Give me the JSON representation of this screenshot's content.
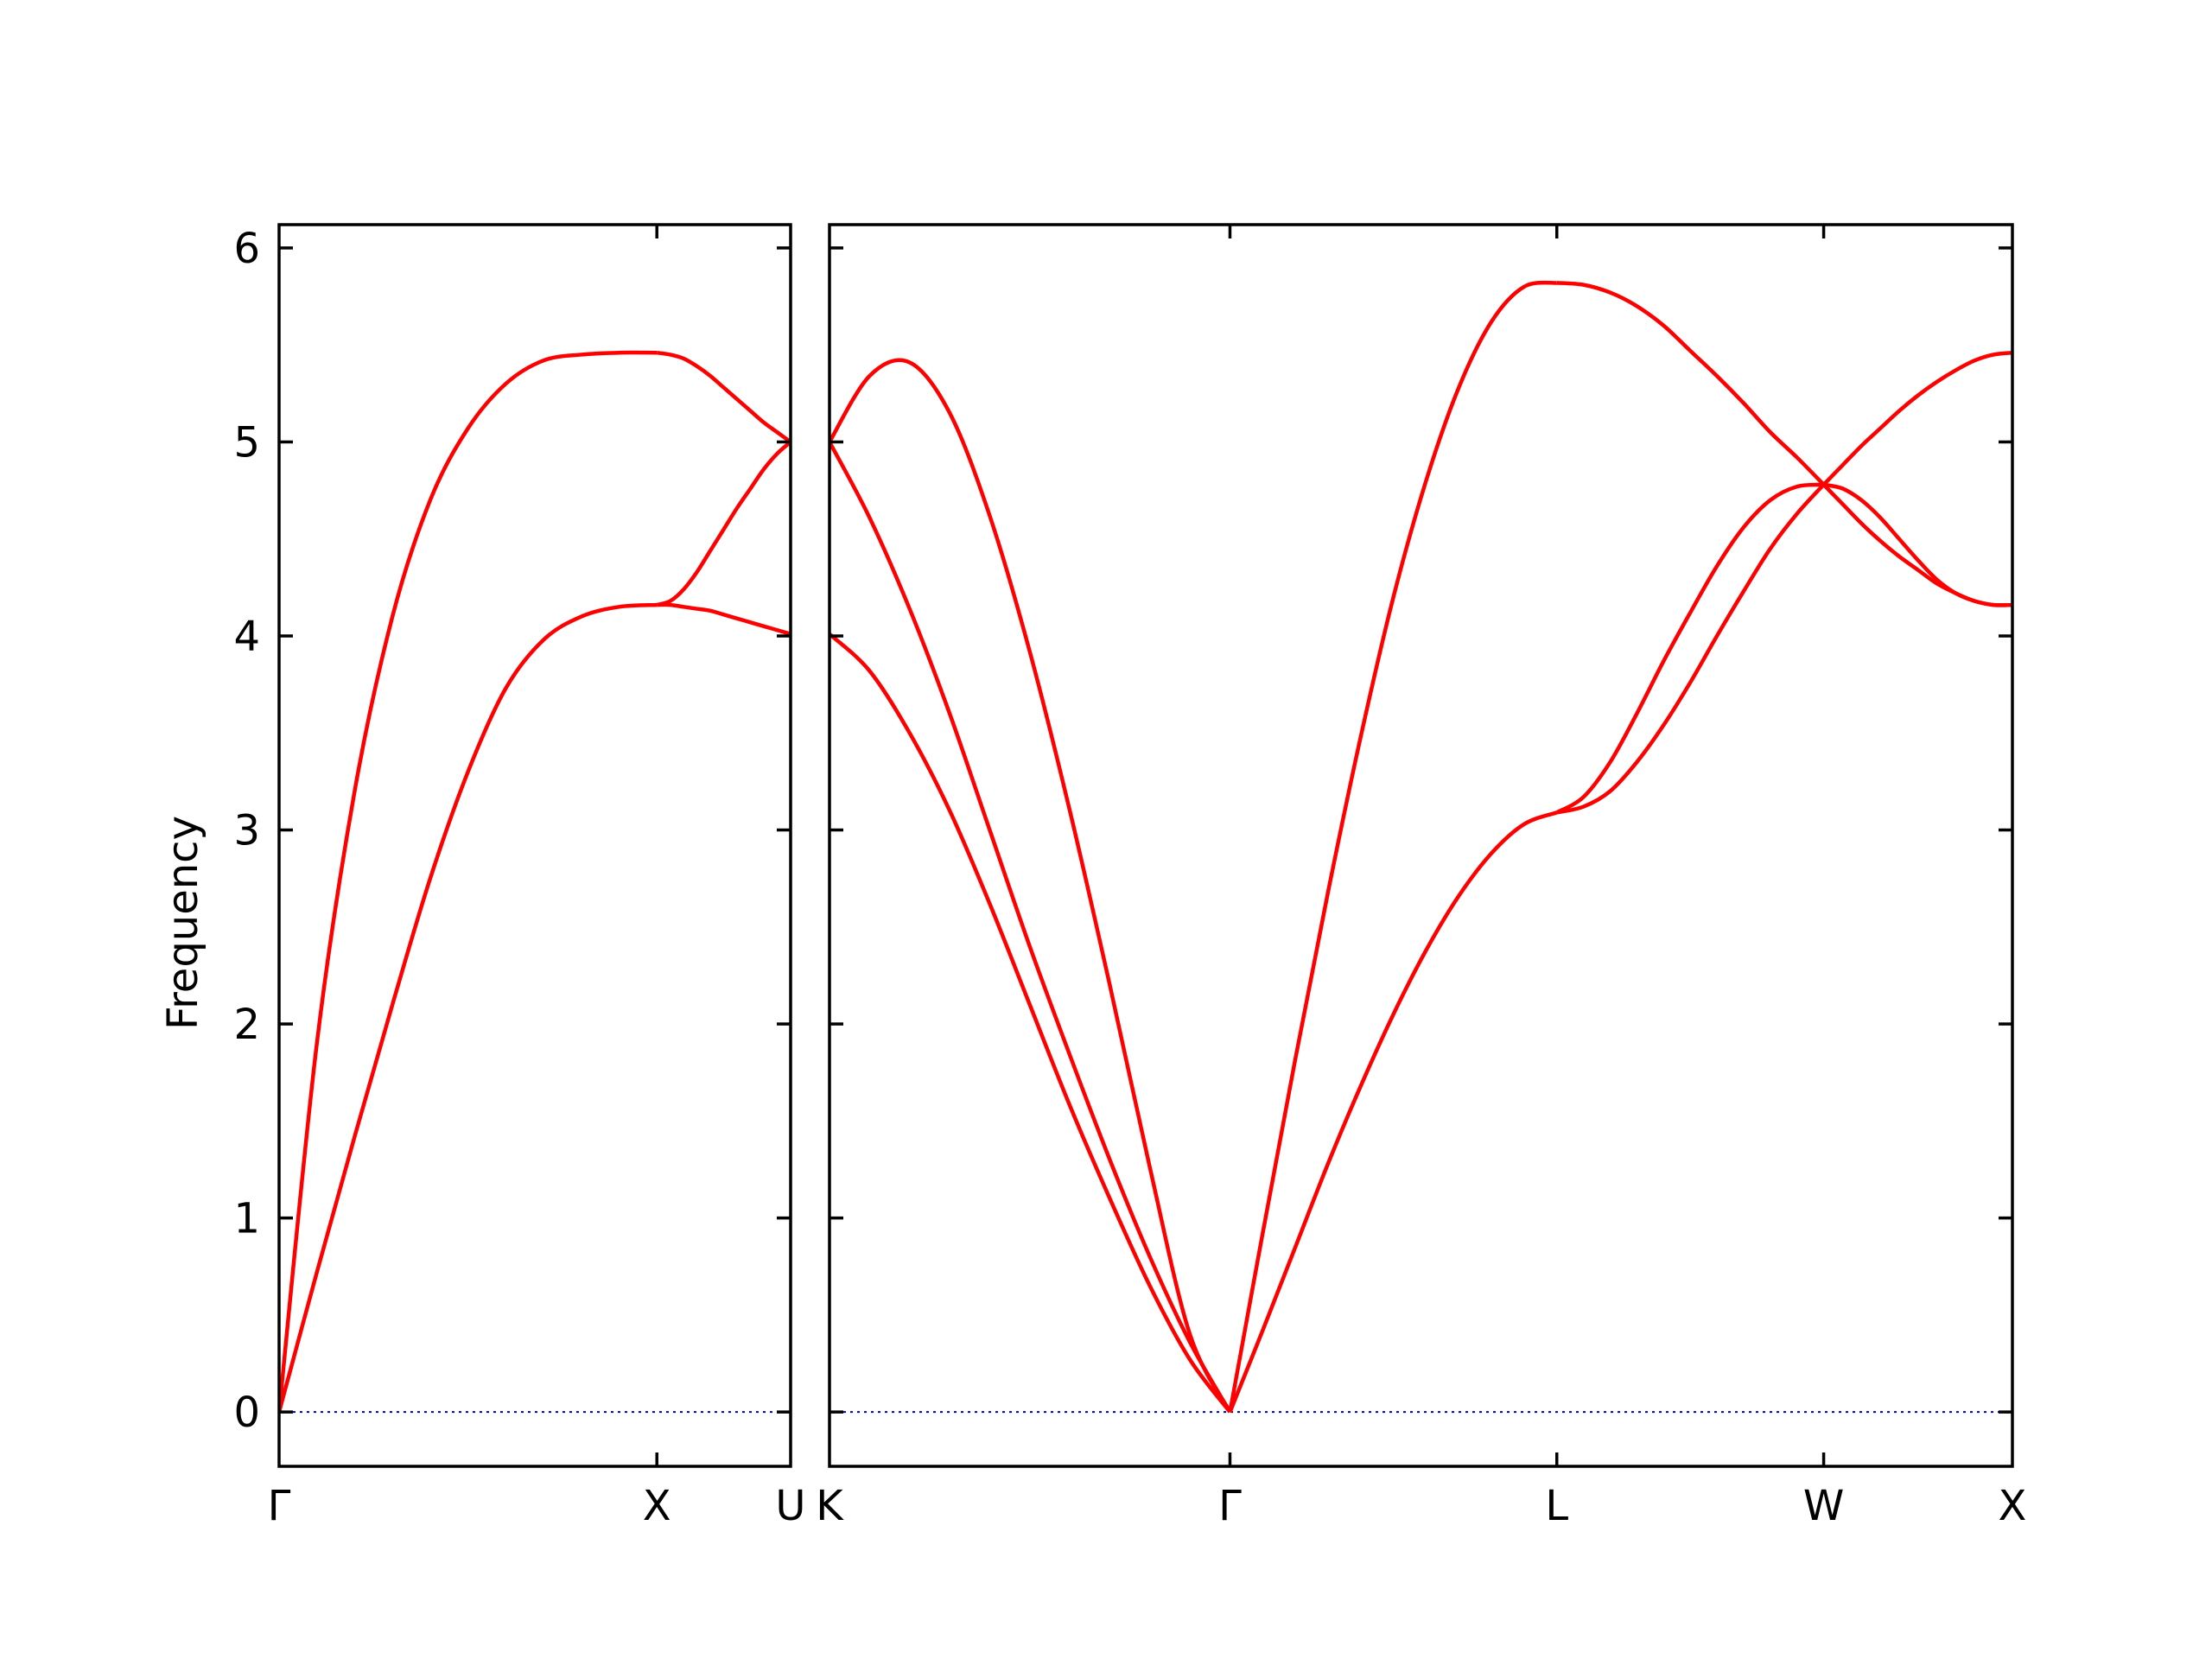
{
  "chart_data": {
    "type": "line",
    "title": "",
    "ylabel": "Frequency",
    "ylim": [
      -0.28,
      6.12
    ],
    "yticks": [
      0,
      1,
      2,
      3,
      4,
      5,
      6
    ],
    "ytick_labels": [
      "0",
      "1",
      "2",
      "3",
      "4",
      "5",
      "6"
    ],
    "grid": false,
    "legend": "none",
    "line_color": "#ff0000",
    "zero_line_color": "#0000aa",
    "panels": [
      {
        "id": "left",
        "path_labels": [
          "Γ",
          "X",
          "U"
        ],
        "segments": [
          {
            "from": "Γ",
            "to": "X",
            "length": 1.0,
            "branches": [
              {
                "name": "upper",
                "x": [
                  0,
                  0.1,
                  0.2,
                  0.3,
                  0.4,
                  0.5,
                  0.6,
                  0.7,
                  0.8,
                  0.9,
                  1.0
                ],
                "y": [
                  0,
                  1.9,
                  3.2,
                  4.1,
                  4.7,
                  5.07,
                  5.3,
                  5.42,
                  5.45,
                  5.46,
                  5.46
                ]
              },
              {
                "name": "lower",
                "x": [
                  0,
                  0.1,
                  0.2,
                  0.3,
                  0.4,
                  0.5,
                  0.6,
                  0.7,
                  0.8,
                  0.9,
                  1.0
                ],
                "y": [
                  0,
                  0.72,
                  1.42,
                  2.1,
                  2.75,
                  3.3,
                  3.73,
                  3.98,
                  4.1,
                  4.15,
                  4.16
                ]
              }
            ]
          },
          {
            "from": "X",
            "to": "U",
            "length": 0.354,
            "branches": [
              {
                "name": "upper",
                "x": [
                  0,
                  0.1,
                  0.2,
                  0.3,
                  0.4,
                  0.5,
                  0.6,
                  0.7,
                  0.8,
                  0.9,
                  1.0
                ],
                "y": [
                  5.46,
                  5.45,
                  5.43,
                  5.39,
                  5.34,
                  5.28,
                  5.22,
                  5.16,
                  5.1,
                  5.05,
                  5.0
                ]
              },
              {
                "name": "mid",
                "x": [
                  0,
                  0.1,
                  0.2,
                  0.3,
                  0.4,
                  0.5,
                  0.6,
                  0.7,
                  0.8,
                  0.9,
                  1.0
                ],
                "y": [
                  4.16,
                  4.18,
                  4.24,
                  4.33,
                  4.44,
                  4.55,
                  4.66,
                  4.76,
                  4.86,
                  4.94,
                  5.0
                ]
              },
              {
                "name": "lower",
                "x": [
                  0,
                  0.1,
                  0.2,
                  0.3,
                  0.4,
                  0.5,
                  0.6,
                  0.7,
                  0.8,
                  0.9,
                  1.0
                ],
                "y": [
                  4.16,
                  4.16,
                  4.15,
                  4.14,
                  4.13,
                  4.11,
                  4.09,
                  4.07,
                  4.05,
                  4.03,
                  4.01
                ]
              }
            ]
          }
        ]
      },
      {
        "id": "right",
        "path_labels": [
          "K",
          "Γ",
          "L",
          "W",
          "X"
        ],
        "segments": [
          {
            "from": "K",
            "to": "Γ",
            "length": 1.061,
            "branches": [
              {
                "name": "upper",
                "x": [
                  0,
                  0.1,
                  0.2,
                  0.3,
                  0.4,
                  0.5,
                  0.6,
                  0.7,
                  0.8,
                  0.9,
                  1.0
                ],
                "y": [
                  5.0,
                  5.34,
                  5.41,
                  5.15,
                  4.62,
                  3.92,
                  3.1,
                  2.2,
                  1.26,
                  0.4,
                  0
                ]
              },
              {
                "name": "mid",
                "x": [
                  0,
                  0.1,
                  0.2,
                  0.3,
                  0.4,
                  0.5,
                  0.6,
                  0.7,
                  0.8,
                  0.9,
                  1.0
                ],
                "y": [
                  5.0,
                  4.61,
                  4.14,
                  3.6,
                  3.0,
                  2.4,
                  1.84,
                  1.3,
                  0.8,
                  0.36,
                  0
                ]
              },
              {
                "name": "lower",
                "x": [
                  0,
                  0.1,
                  0.2,
                  0.3,
                  0.4,
                  0.5,
                  0.6,
                  0.7,
                  0.8,
                  0.9,
                  1.0
                ],
                "y": [
                  4.01,
                  3.82,
                  3.5,
                  3.1,
                  2.62,
                  2.1,
                  1.58,
                  1.1,
                  0.65,
                  0.27,
                  0
                ]
              }
            ]
          },
          {
            "from": "Γ",
            "to": "L",
            "length": 0.866,
            "branches": [
              {
                "name": "upper",
                "x": [
                  0,
                  0.1,
                  0.2,
                  0.3,
                  0.4,
                  0.5,
                  0.6,
                  0.7,
                  0.8,
                  0.9,
                  1.0
                ],
                "y": [
                  0,
                  0.92,
                  1.82,
                  2.68,
                  3.48,
                  4.2,
                  4.8,
                  5.28,
                  5.62,
                  5.8,
                  5.82
                ]
              },
              {
                "name": "lower",
                "x": [
                  0,
                  0.1,
                  0.2,
                  0.3,
                  0.4,
                  0.5,
                  0.6,
                  0.7,
                  0.8,
                  0.9,
                  1.0
                ],
                "y": [
                  0,
                  0.42,
                  0.85,
                  1.28,
                  1.68,
                  2.05,
                  2.38,
                  2.66,
                  2.88,
                  3.03,
                  3.09
                ]
              }
            ]
          },
          {
            "from": "L",
            "to": "W",
            "length": 0.707,
            "branches": [
              {
                "name": "upper",
                "x": [
                  0,
                  0.1,
                  0.2,
                  0.3,
                  0.4,
                  0.5,
                  0.6,
                  0.7,
                  0.8,
                  0.9,
                  1.0
                ],
                "y": [
                  5.82,
                  5.81,
                  5.77,
                  5.7,
                  5.6,
                  5.47,
                  5.34,
                  5.2,
                  5.05,
                  4.92,
                  4.78
                ]
              },
              {
                "name": "mid",
                "x": [
                  0,
                  0.1,
                  0.2,
                  0.3,
                  0.4,
                  0.5,
                  0.6,
                  0.7,
                  0.8,
                  0.9,
                  1.0
                ],
                "y": [
                  3.09,
                  3.17,
                  3.35,
                  3.6,
                  3.87,
                  4.12,
                  4.36,
                  4.56,
                  4.7,
                  4.77,
                  4.78
                ]
              },
              {
                "name": "lower",
                "x": [
                  0,
                  0.1,
                  0.2,
                  0.3,
                  0.4,
                  0.5,
                  0.6,
                  0.7,
                  0.8,
                  0.9,
                  1.0
                ],
                "y": [
                  3.09,
                  3.12,
                  3.2,
                  3.35,
                  3.54,
                  3.76,
                  4.0,
                  4.23,
                  4.45,
                  4.63,
                  4.78
                ]
              }
            ]
          },
          {
            "from": "W",
            "to": "X",
            "length": 0.5,
            "branches": [
              {
                "name": "upper",
                "x": [
                  0,
                  0.1,
                  0.2,
                  0.3,
                  0.4,
                  0.5,
                  0.6,
                  0.7,
                  0.8,
                  0.9,
                  1.0
                ],
                "y": [
                  4.78,
                  4.88,
                  4.98,
                  5.07,
                  5.16,
                  5.24,
                  5.31,
                  5.37,
                  5.42,
                  5.45,
                  5.46
                ]
              },
              {
                "name": "mid",
                "x": [
                  0,
                  0.1,
                  0.2,
                  0.3,
                  0.4,
                  0.5,
                  0.6,
                  0.7,
                  0.8,
                  0.9,
                  1.0
                ],
                "y": [
                  4.78,
                  4.76,
                  4.7,
                  4.61,
                  4.5,
                  4.39,
                  4.29,
                  4.22,
                  4.18,
                  4.16,
                  4.16
                ]
              },
              {
                "name": "lower",
                "x": [
                  0,
                  0.1,
                  0.2,
                  0.3,
                  0.4,
                  0.5,
                  0.6,
                  0.7,
                  0.8,
                  0.9,
                  1.0
                ],
                "y": [
                  4.78,
                  4.68,
                  4.58,
                  4.49,
                  4.41,
                  4.34,
                  4.27,
                  4.22,
                  4.18,
                  4.16,
                  4.16
                ]
              }
            ]
          }
        ]
      }
    ]
  }
}
